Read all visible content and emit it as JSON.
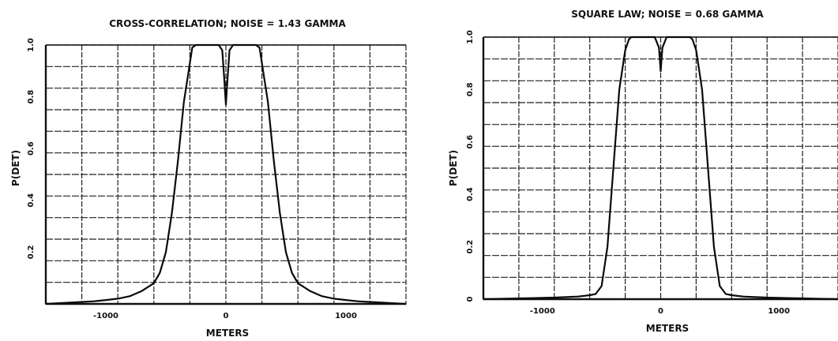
{
  "chart_data": [
    {
      "type": "line",
      "title": "CROSS-CORRELATION; NOISE = 1.43 GAMMA",
      "xlabel": "METERS",
      "ylabel": "P(DET)",
      "xlim": [
        -1500,
        1500
      ],
      "ylim": [
        0,
        1.0
      ],
      "xticks": [
        -1000,
        0,
        1000
      ],
      "xtick_labels": [
        "-1000",
        "0",
        "1000"
      ],
      "yticks": [
        0.2,
        0.4,
        0.6,
        0.8,
        1.0
      ],
      "ytick_labels": [
        "0.2",
        "0.4",
        "0.6",
        "0.8",
        "1.0"
      ],
      "grid": true,
      "series": [
        {
          "x": [
            -1500,
            -1300,
            -1100,
            -1000,
            -900,
            -800,
            -700,
            -600,
            -550,
            -500,
            -450,
            -400,
            -350,
            -300,
            -280,
            -250,
            -200,
            -150,
            -100,
            -60,
            -30,
            -15,
            0,
            15,
            30,
            60,
            100,
            150,
            200,
            250,
            280,
            300,
            350,
            400,
            450,
            500,
            550,
            600,
            700,
            800,
            900,
            1000,
            1100,
            1300,
            1500
          ],
          "y": [
            0.0,
            0.005,
            0.01,
            0.015,
            0.02,
            0.03,
            0.05,
            0.08,
            0.12,
            0.2,
            0.35,
            0.55,
            0.78,
            0.93,
            0.99,
            1.0,
            1.0,
            1.0,
            1.0,
            1.0,
            0.98,
            0.88,
            0.77,
            0.88,
            0.98,
            1.0,
            1.0,
            1.0,
            1.0,
            1.0,
            0.99,
            0.93,
            0.78,
            0.55,
            0.35,
            0.2,
            0.12,
            0.08,
            0.05,
            0.03,
            0.02,
            0.015,
            0.01,
            0.005,
            0.0
          ]
        }
      ]
    },
    {
      "type": "line",
      "title": "SQUARE LAW; NOISE = 0.68 GAMMA",
      "xlabel": "METERS",
      "ylabel": "P(DET)",
      "xlim": [
        -1500,
        1500
      ],
      "ylim": [
        0,
        1.0
      ],
      "xticks": [
        -1000,
        0,
        1000
      ],
      "xtick_labels": [
        "-1000",
        "0",
        "1000"
      ],
      "yticks": [
        0,
        0.2,
        0.4,
        0.6,
        0.8,
        1.0
      ],
      "ytick_labels": [
        "0",
        "0.2",
        "0.4",
        "0.6",
        "0.8",
        "1.0"
      ],
      "grid": true,
      "series": [
        {
          "x": [
            -1500,
            -1300,
            -1100,
            -1000,
            -900,
            -800,
            -700,
            -600,
            -550,
            -500,
            -450,
            -400,
            -350,
            -300,
            -270,
            -250,
            -200,
            -150,
            -100,
            -50,
            -15,
            0,
            15,
            50,
            100,
            150,
            200,
            250,
            270,
            300,
            350,
            400,
            450,
            500,
            550,
            600,
            700,
            800,
            900,
            1000,
            1100,
            1300,
            1500
          ],
          "y": [
            0.0,
            0.002,
            0.004,
            0.005,
            0.006,
            0.008,
            0.01,
            0.015,
            0.02,
            0.05,
            0.2,
            0.5,
            0.8,
            0.95,
            0.99,
            1.0,
            1.0,
            1.0,
            1.0,
            1.0,
            0.96,
            0.87,
            0.96,
            1.0,
            1.0,
            1.0,
            1.0,
            1.0,
            0.99,
            0.95,
            0.8,
            0.5,
            0.2,
            0.05,
            0.02,
            0.015,
            0.01,
            0.008,
            0.006,
            0.005,
            0.004,
            0.002,
            0.0
          ]
        }
      ]
    }
  ]
}
